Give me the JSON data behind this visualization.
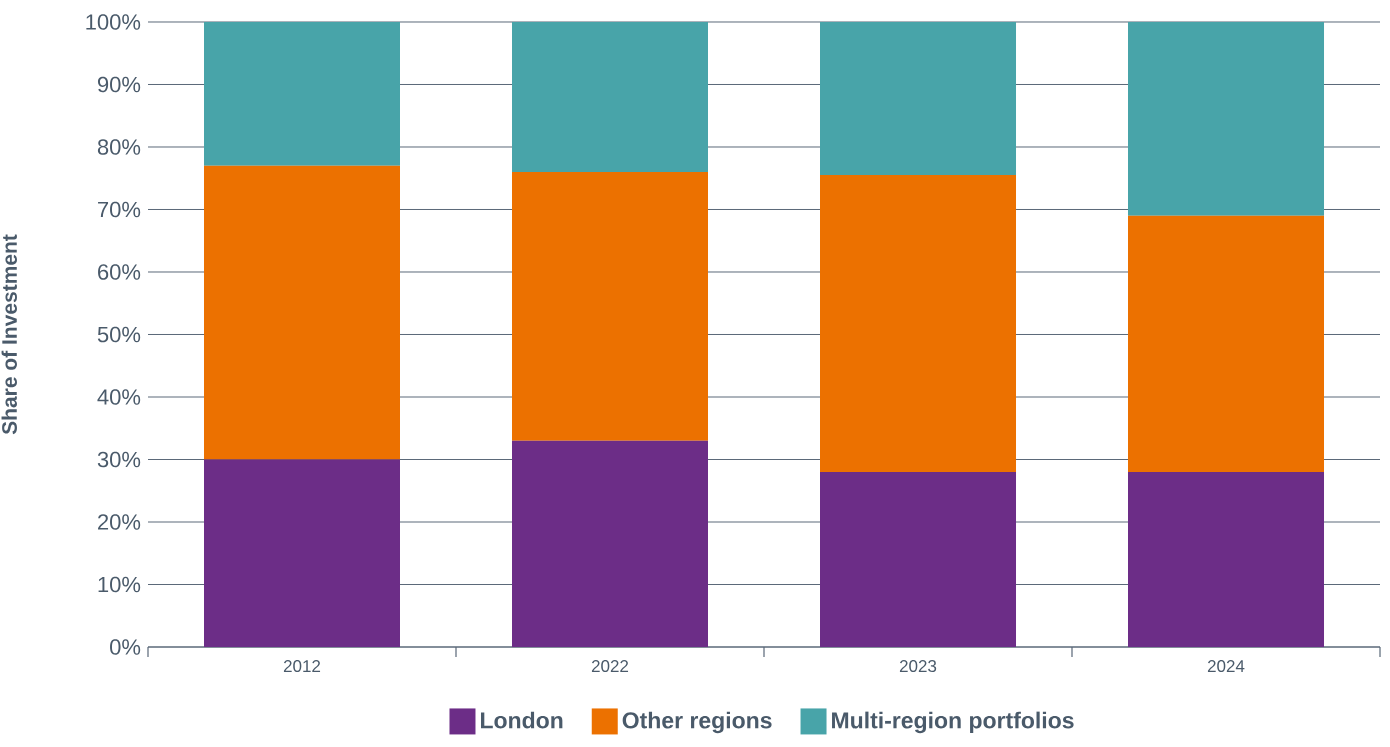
{
  "chart_data": {
    "type": "bar",
    "stacked": true,
    "ylabel": "Share of Investment",
    "categories": [
      "2012",
      "2022",
      "2023",
      "2024"
    ],
    "series": [
      {
        "name": "London",
        "color": "#6c2d87",
        "values": [
          30,
          33,
          28,
          28
        ]
      },
      {
        "name": "Other regions",
        "color": "#ec7100",
        "values": [
          47,
          43,
          47.5,
          41
        ]
      },
      {
        "name": "Multi-region portfolios",
        "color": "#48a4a9",
        "values": [
          23,
          24,
          24.5,
          31
        ]
      }
    ],
    "ylim": [
      0,
      100
    ],
    "yticks": [
      {
        "value": 0,
        "label": "0%"
      },
      {
        "value": 10,
        "label": "10%"
      },
      {
        "value": 20,
        "label": "20%"
      },
      {
        "value": 30,
        "label": "30%"
      },
      {
        "value": 40,
        "label": "40%"
      },
      {
        "value": 50,
        "label": "50%"
      },
      {
        "value": 60,
        "label": "60%"
      },
      {
        "value": 70,
        "label": "70%"
      },
      {
        "value": 80,
        "label": "80%"
      },
      {
        "value": 90,
        "label": "90%"
      },
      {
        "value": 100,
        "label": "100%"
      }
    ],
    "grid": "y",
    "legend": "bottom"
  }
}
